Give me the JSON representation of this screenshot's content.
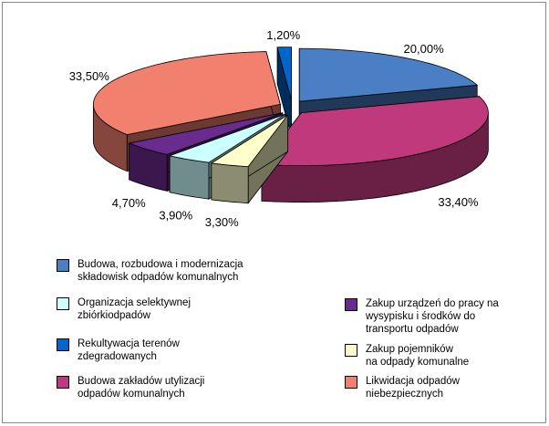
{
  "chart_data": {
    "type": "pie",
    "categories": [
      "Budowa, rozbudowa i modernizacja\nskładowisk odpadów komunalnych",
      "Budowa zakładów utylizacji\nodpadów komunalnych",
      "Zakup pojemników\nna odpady komunalne",
      "Organizacja selektywnej\nzbiórkiodpadów",
      "Zakup urządzeń do pracy na\nwysypisku i środków do\ntransportu odpadów",
      "Likwidacja odpadów\nniebezpiecznych",
      "Rekultywacja terenów\nzdegradowanych"
    ],
    "values": [
      20.0,
      33.4,
      3.3,
      3.9,
      4.7,
      33.5,
      1.2
    ],
    "value_labels": [
      "20,00%",
      "33,40%",
      "3,30%",
      "3,90%",
      "4,70%",
      "33,50%",
      "1,20%"
    ],
    "colors": [
      "#4a7fc6",
      "#c0397c",
      "#ffffcc",
      "#ccffff",
      "#6a2b8e",
      "#f2806f",
      "#0066cc"
    ],
    "legend": "bottom"
  }
}
